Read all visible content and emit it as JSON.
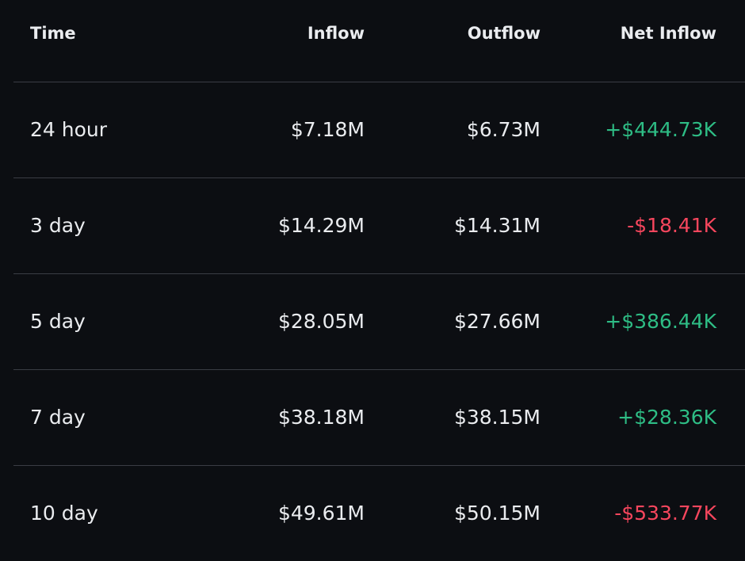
{
  "header": {
    "time": "Time",
    "inflow": "Inflow",
    "outflow": "Outflow",
    "net_inflow": "Net Inflow"
  },
  "rows": [
    {
      "time": "24 hour",
      "inflow": "$7.18M",
      "outflow": "$6.73M",
      "net_inflow": "+$444.73K",
      "net_sign": "positive"
    },
    {
      "time": "3 day",
      "inflow": "$14.29M",
      "outflow": "$14.31M",
      "net_inflow": "-$18.41K",
      "net_sign": "negative"
    },
    {
      "time": "5 day",
      "inflow": "$28.05M",
      "outflow": "$27.66M",
      "net_inflow": "+$386.44K",
      "net_sign": "positive"
    },
    {
      "time": "7 day",
      "inflow": "$38.18M",
      "outflow": "$38.15M",
      "net_inflow": "+$28.36K",
      "net_sign": "positive"
    },
    {
      "time": "10 day",
      "inflow": "$49.61M",
      "outflow": "$50.15M",
      "net_inflow": "-$533.77K",
      "net_sign": "negative"
    }
  ],
  "colors": {
    "background": "#0c0e12",
    "text": "#eaecef",
    "positive": "#2ebd85",
    "negative": "#f6465d",
    "divider": "#3a3d44"
  }
}
